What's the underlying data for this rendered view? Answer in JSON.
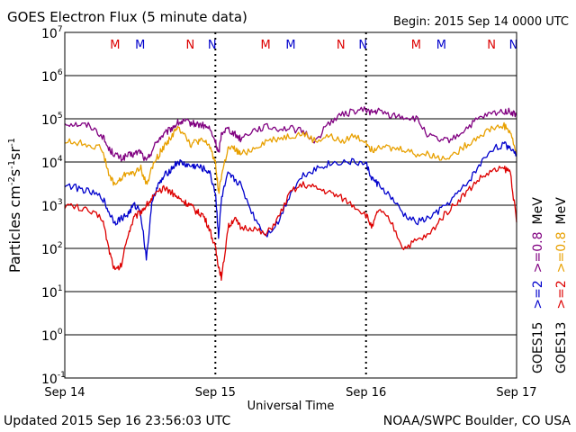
{
  "chart_data": {
    "type": "line",
    "title": "GOES Electron Flux (5 minute data)",
    "begin_label": "Begin: 2015 Sep 14 0000 UTC",
    "xlabel": "Universal Time",
    "ylabel_main": "Particles cm",
    "ylabel_exps": [
      "-2",
      "-1",
      "-1"
    ],
    "ylabel_units": [
      "s",
      "sr"
    ],
    "y_scale": "log",
    "ylim": [
      0.1,
      10000000
    ],
    "y_ticks": [
      {
        "base": "10",
        "exp": "7",
        "value": 10000000
      },
      {
        "base": "10",
        "exp": "6",
        "value": 1000000
      },
      {
        "base": "10",
        "exp": "5",
        "value": 100000
      },
      {
        "base": "10",
        "exp": "4",
        "value": 10000
      },
      {
        "base": "10",
        "exp": "3",
        "value": 1000
      },
      {
        "base": "10",
        "exp": "2",
        "value": 100
      },
      {
        "base": "10",
        "exp": "1",
        "value": 10
      },
      {
        "base": "10",
        "exp": "0",
        "value": 1
      },
      {
        "base": "10",
        "exp": "-1",
        "value": 0.1
      }
    ],
    "x_unit": "hours from 2015 Sep 14 00:00 UTC",
    "xlim": [
      0,
      72
    ],
    "x_ticks": [
      {
        "label": "Sep 14",
        "hour": 0
      },
      {
        "label": "Sep 15",
        "hour": 24
      },
      {
        "label": "Sep 16",
        "hour": 48
      },
      {
        "label": "Sep 17",
        "hour": 72
      }
    ],
    "grid": true,
    "threshold_line": 1000,
    "markers": [
      {
        "label": "M",
        "hour": 8,
        "color": "#dd0000"
      },
      {
        "label": "M",
        "hour": 12,
        "color": "#0000cc"
      },
      {
        "label": "N",
        "hour": 20,
        "color": "#dd0000"
      },
      {
        "label": "N",
        "hour": 23.5,
        "color": "#0000cc"
      },
      {
        "label": "M",
        "hour": 32,
        "color": "#dd0000"
      },
      {
        "label": "M",
        "hour": 36,
        "color": "#0000cc"
      },
      {
        "label": "N",
        "hour": 44,
        "color": "#dd0000"
      },
      {
        "label": "N",
        "hour": 47.5,
        "color": "#0000cc"
      },
      {
        "label": "M",
        "hour": 56,
        "color": "#dd0000"
      },
      {
        "label": "M",
        "hour": 60,
        "color": "#0000cc"
      },
      {
        "label": "N",
        "hour": 68,
        "color": "#dd0000"
      },
      {
        "label": "N",
        "hour": 71.5,
        "color": "#0000cc"
      }
    ],
    "legend_right": {
      "col1": {
        "sat": "GOES15",
        "items": [
          {
            "text": ">=2",
            "color": "#0000cc"
          },
          {
            "text": ">=0.8",
            "color": "#800080"
          },
          {
            "text": "MeV",
            "color": "#000000"
          }
        ]
      },
      "col2": {
        "sat": "GOES13",
        "items": [
          {
            "text": ">=2",
            "color": "#dd0000"
          },
          {
            "text": ">=0.8",
            "color": "#e8a000"
          },
          {
            "text": "MeV",
            "color": "#000000"
          }
        ]
      }
    },
    "series": [
      {
        "name": "GOES15 >=0.8 MeV",
        "color": "#800080",
        "x": [
          0,
          2,
          4,
          6,
          7,
          8,
          9,
          10,
          11,
          12,
          13,
          14,
          15,
          16,
          17,
          18,
          19,
          20,
          21,
          22,
          23,
          24,
          24.5,
          25,
          26,
          27,
          28,
          30,
          32,
          34,
          36,
          38,
          40,
          42,
          44,
          46,
          48,
          49,
          50,
          52,
          54,
          56,
          58,
          60,
          62,
          64,
          66,
          68,
          70,
          71,
          72
        ],
        "y": [
          80000,
          75000,
          70000,
          40000,
          20000,
          15000,
          12000,
          14000,
          15000,
          18000,
          10000,
          20000,
          35000,
          45000,
          60000,
          80000,
          85000,
          80000,
          75000,
          70000,
          60000,
          30000,
          15000,
          50000,
          60000,
          45000,
          35000,
          55000,
          65000,
          60000,
          60000,
          50000,
          30000,
          80000,
          120000,
          150000,
          160000,
          140000,
          150000,
          120000,
          110000,
          100000,
          40000,
          30000,
          35000,
          60000,
          100000,
          130000,
          150000,
          145000,
          120000
        ]
      },
      {
        "name": "GOES13 >=0.8 MeV",
        "color": "#e8a000",
        "x": [
          0,
          2,
          4,
          6,
          7,
          8,
          9,
          10,
          11,
          12,
          13,
          14,
          15,
          16,
          17,
          18,
          19,
          20,
          21,
          22,
          23,
          24,
          24.5,
          25,
          26,
          27,
          28,
          30,
          32,
          34,
          36,
          38,
          40,
          42,
          44,
          46,
          48,
          49,
          50,
          52,
          54,
          56,
          58,
          60,
          62,
          64,
          66,
          68,
          70,
          71,
          72
        ],
        "y": [
          30000,
          28000,
          25000,
          20000,
          5000,
          3000,
          4000,
          6000,
          5000,
          8000,
          3000,
          8000,
          15000,
          25000,
          40000,
          60000,
          50000,
          25000,
          30000,
          30000,
          25000,
          10000,
          2000,
          5000,
          20000,
          20000,
          15000,
          20000,
          30000,
          35000,
          40000,
          45000,
          30000,
          40000,
          30000,
          40000,
          30000,
          18000,
          25000,
          20000,
          20000,
          15000,
          15000,
          12000,
          15000,
          25000,
          40000,
          60000,
          70000,
          50000,
          15000
        ]
      },
      {
        "name": "GOES15 >=2 MeV",
        "color": "#0000cc",
        "x": [
          0,
          2,
          4,
          6,
          7,
          8,
          9,
          10,
          11,
          12,
          13,
          14,
          15,
          16,
          17,
          18,
          19,
          20,
          21,
          22,
          23,
          24,
          24.5,
          25,
          26,
          27,
          28,
          30,
          32,
          34,
          36,
          38,
          40,
          42,
          44,
          46,
          48,
          49,
          50,
          52,
          54,
          56,
          58,
          60,
          62,
          64,
          66,
          68,
          70,
          71,
          72
        ],
        "y": [
          3000,
          2500,
          2000,
          1500,
          700,
          400,
          500,
          600,
          1000,
          800,
          60,
          1500,
          3000,
          5000,
          7000,
          10000,
          9000,
          8000,
          8000,
          7000,
          6000,
          2000,
          200,
          1500,
          5000,
          4000,
          3000,
          600,
          200,
          400,
          2000,
          5000,
          7000,
          9000,
          10000,
          10000,
          9000,
          4000,
          3000,
          1500,
          600,
          400,
          500,
          800,
          1500,
          3000,
          8000,
          20000,
          25000,
          22000,
          15000
        ]
      },
      {
        "name": "GOES13 >=2 MeV",
        "color": "#dd0000",
        "x": [
          0,
          2,
          4,
          6,
          7,
          8,
          9,
          10,
          11,
          12,
          13,
          14,
          15,
          16,
          17,
          18,
          19,
          20,
          21,
          22,
          23,
          24,
          24.5,
          25,
          26,
          27,
          28,
          30,
          32,
          34,
          36,
          38,
          40,
          42,
          44,
          46,
          48,
          49,
          50,
          52,
          54,
          56,
          58,
          60,
          62,
          64,
          66,
          68,
          70,
          71,
          72
        ],
        "y": [
          1000,
          900,
          700,
          500,
          100,
          30,
          40,
          200,
          500,
          700,
          1000,
          1500,
          2000,
          2500,
          2000,
          1500,
          1200,
          1000,
          700,
          600,
          300,
          100,
          40,
          20,
          300,
          500,
          300,
          300,
          200,
          500,
          2000,
          3000,
          2500,
          2000,
          1500,
          1000,
          600,
          300,
          800,
          400,
          100,
          150,
          200,
          500,
          1000,
          2000,
          4000,
          6000,
          7000,
          6000,
          400
        ]
      }
    ]
  },
  "footer": {
    "updated": "Updated 2015 Sep 16 23:56:03 UTC",
    "credit": "NOAA/SWPC Boulder, CO USA"
  }
}
